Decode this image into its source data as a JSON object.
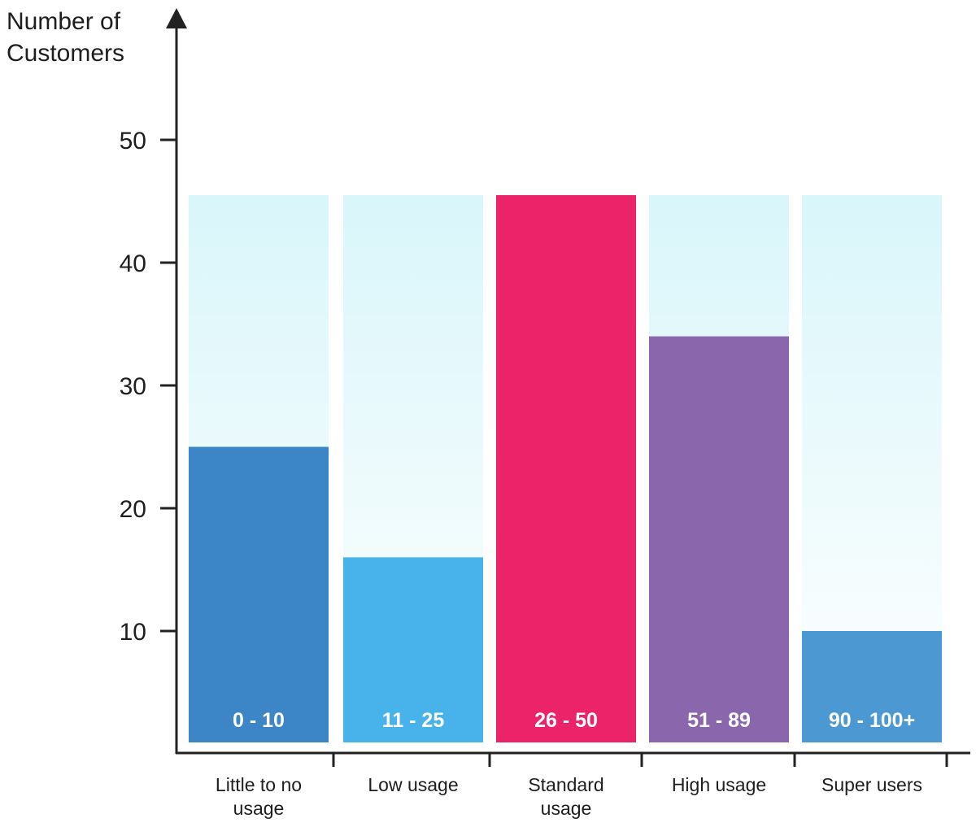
{
  "chart_data": {
    "type": "bar",
    "title": "",
    "ylabel": "Number of Customers",
    "ylabel_lines": [
      "Number of",
      "Customers"
    ],
    "xlabel": "",
    "ylim": [
      0,
      50
    ],
    "yticks": [
      10,
      20,
      30,
      40,
      50
    ],
    "background_max": 45.5,
    "categories": [
      {
        "lines": [
          "Little to no",
          "usage"
        ],
        "range": "0 - 10",
        "value": 25,
        "color": "#3C85C6"
      },
      {
        "lines": [
          "Low usage"
        ],
        "range": "11 - 25",
        "value": 16,
        "color": "#48B2EA"
      },
      {
        "lines": [
          "Standard",
          "usage"
        ],
        "range": "26 - 50",
        "value": 45.5,
        "color": "#EC2369"
      },
      {
        "lines": [
          "High usage"
        ],
        "range": "51 - 89",
        "value": 34,
        "color": "#8A66AD"
      },
      {
        "lines": [
          "Super users"
        ],
        "range": "90 - 100+",
        "value": 10,
        "color": "#4C98D2"
      }
    ],
    "grid": false,
    "legend": "none"
  }
}
